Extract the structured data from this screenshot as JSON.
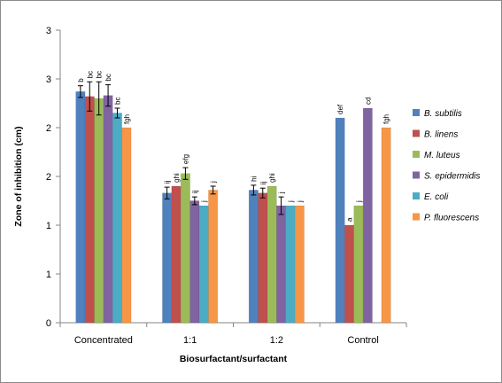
{
  "chart_data": {
    "type": "bar",
    "xlabel": "Biosurfactant/surfactant",
    "ylabel": "Zone of inhibition (cm)",
    "ylim": [
      0,
      3
    ],
    "yticks": [
      {
        "value": 0,
        "label": "0"
      },
      {
        "value": 0.5,
        "label": "1"
      },
      {
        "value": 1.0,
        "label": "1"
      },
      {
        "value": 1.5,
        "label": "2"
      },
      {
        "value": 2.0,
        "label": "2"
      },
      {
        "value": 2.5,
        "label": "3"
      },
      {
        "value": 3.0,
        "label": "3"
      }
    ],
    "grid": false,
    "legend_position": "right",
    "categories": [
      "Concentrated",
      "1:1",
      "1:2",
      "Control"
    ],
    "series": [
      {
        "name": "B. subtilis",
        "color": "#4F81BD",
        "values": [
          2.37,
          1.33,
          1.36,
          2.1
        ],
        "errors": [
          0.06,
          0.06,
          0.05,
          null
        ],
        "labels": [
          "b",
          "ij",
          "hi",
          "def"
        ]
      },
      {
        "name": "B. linens",
        "color": "#C0504D",
        "values": [
          2.32,
          1.4,
          1.33,
          1.0
        ],
        "errors": [
          0.15,
          null,
          0.05,
          null
        ],
        "labels": [
          "bc",
          "ghi",
          "ij",
          "a"
        ]
      },
      {
        "name": "M. luteus",
        "color": "#9BBB59",
        "values": [
          2.3,
          1.53,
          1.4,
          1.2
        ],
        "errors": [
          0.17,
          0.06,
          null,
          null
        ],
        "labels": [
          "bc",
          "efg",
          "ghi",
          "j"
        ]
      },
      {
        "name": "S. epidermidis",
        "color": "#8064A2",
        "values": [
          2.33,
          1.25,
          1.2,
          2.2
        ],
        "errors": [
          0.11,
          0.04,
          0.09,
          null
        ],
        "labels": [
          "bc",
          "ij",
          "j",
          "cd"
        ]
      },
      {
        "name": "E. coli",
        "color": "#4BACC6",
        "values": [
          2.15,
          1.2,
          1.2,
          null
        ],
        "errors": [
          0.05,
          null,
          null,
          null
        ],
        "labels": [
          "bc",
          "j",
          "j",
          ""
        ]
      },
      {
        "name": "P. fluorescens",
        "color": "#F79646",
        "values": [
          2.0,
          1.36,
          1.2,
          2.0
        ],
        "errors": [
          null,
          0.04,
          null,
          null
        ],
        "labels": [
          "fgh",
          "j",
          "j",
          "fgh"
        ]
      }
    ]
  }
}
